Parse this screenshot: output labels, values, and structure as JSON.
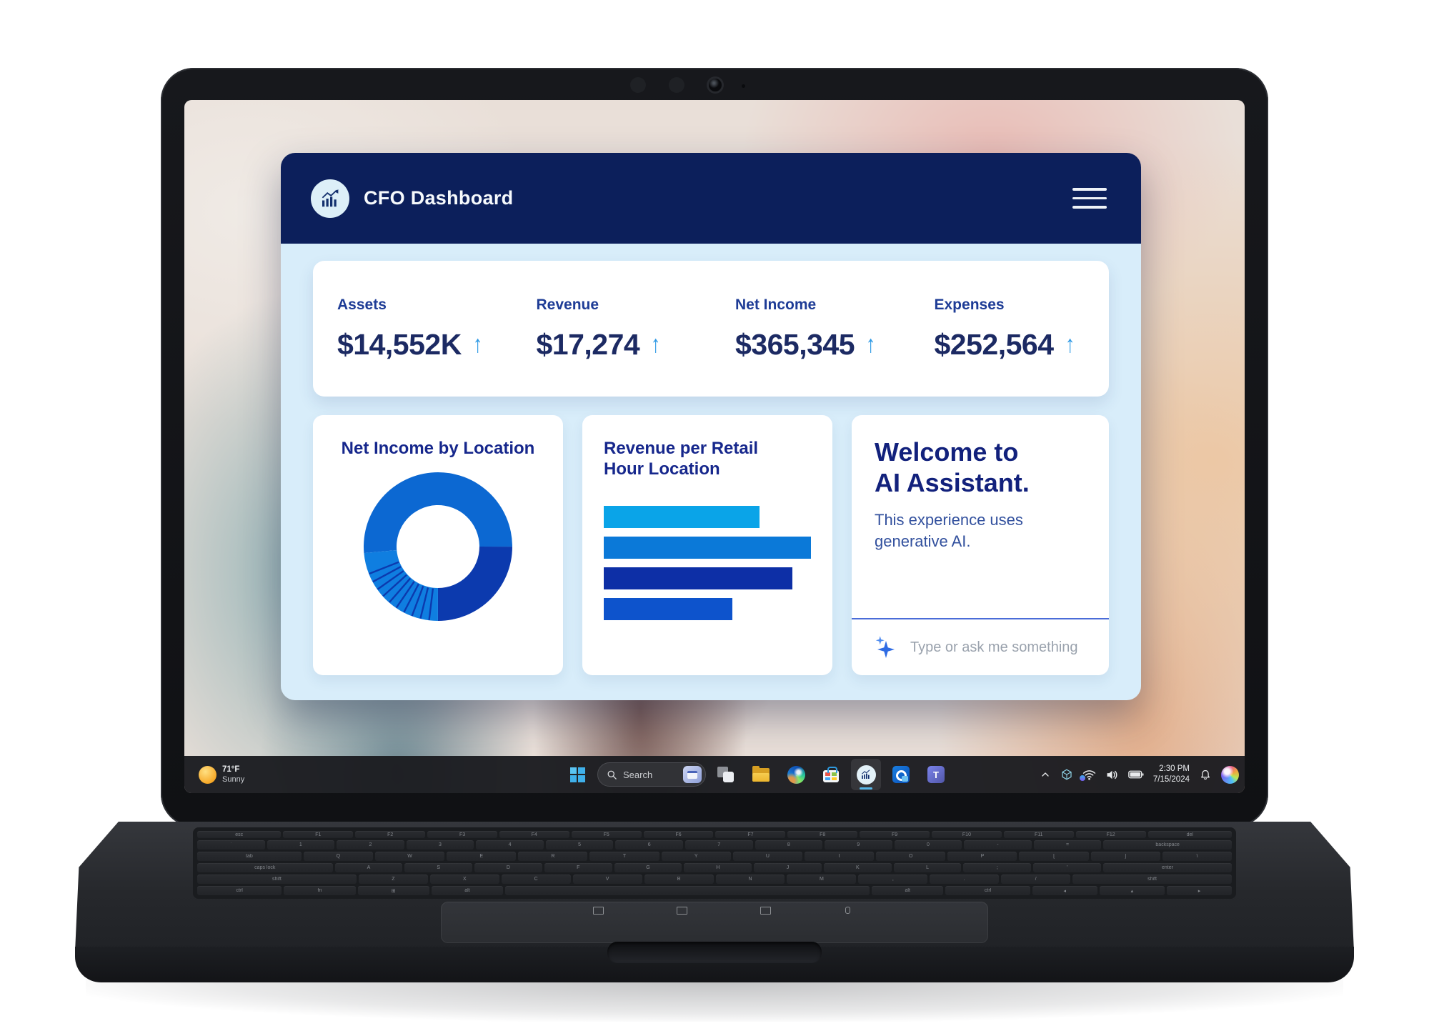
{
  "window": {
    "title": "CFO Dashboard",
    "kpi_trend_glyph": "↑",
    "kpis": [
      {
        "label": "Assets",
        "value": "$14,552K",
        "trend": "up"
      },
      {
        "label": "Revenue",
        "value": "$17,274",
        "trend": "up"
      },
      {
        "label": "Net Income",
        "value": "$365,345",
        "trend": "up"
      },
      {
        "label": "Expenses",
        "value": "$252,564",
        "trend": "up"
      }
    ],
    "ai_panel": {
      "heading_line1": "Welcome to",
      "heading_line2": "AI Assistant.",
      "body": "This experience uses generative AI.",
      "input_placeholder": "Type or ask me something",
      "icon": "sparkle-icon"
    }
  },
  "chart_data": [
    {
      "type": "pie",
      "variant": "donut",
      "title": "Net Income by Location",
      "start_angle_deg": 265,
      "inner_radius_ratio": 0.56,
      "legend": false,
      "separator_color": "#0c3aae",
      "segments": [
        {
          "value": 51.4,
          "color": "#0c68d2"
        },
        {
          "value": 25.0,
          "color": "#0c3aae"
        },
        {
          "value": 1.9,
          "color": "#0f7ee0",
          "sep": true
        },
        {
          "value": 1.9,
          "color": "#0f7ee0",
          "sep": true
        },
        {
          "value": 1.9,
          "color": "#0f7ee0",
          "sep": true
        },
        {
          "value": 1.9,
          "color": "#0f7ee0",
          "sep": true
        },
        {
          "value": 1.9,
          "color": "#0f7ee0",
          "sep": true
        },
        {
          "value": 1.9,
          "color": "#0f7ee0",
          "sep": true
        },
        {
          "value": 1.9,
          "color": "#0f7ee0",
          "sep": true
        },
        {
          "value": 1.9,
          "color": "#0f7ee0",
          "sep": true
        },
        {
          "value": 1.9,
          "color": "#0f7ee0",
          "sep": true
        },
        {
          "value": 1.9,
          "color": "#0f7ee0",
          "sep": true
        },
        {
          "value": 4.6,
          "color": "#0f7ee0",
          "sep": true
        }
      ]
    },
    {
      "type": "bar",
      "title": "Revenue per Retail Hour Location",
      "orientation": "horizontal",
      "value_axis_max": 100,
      "values": [
        75,
        100,
        91,
        62
      ],
      "colors": [
        "#0aa4e8",
        "#0b79d8",
        "#0d2fa6",
        "#0d53cc"
      ],
      "axis_labels": false,
      "grid": false
    }
  ],
  "taskbar": {
    "weather": {
      "temp": "71°F",
      "condition": "Sunny"
    },
    "search_placeholder": "Search",
    "pinned_apps": [
      "task-view",
      "file-explorer",
      "edge",
      "microsoft-store",
      "cfo-dashboard",
      "outlook",
      "teams"
    ],
    "active_app": "cfo-dashboard",
    "tray": {
      "time": "2:30 PM",
      "date": "7/15/2024",
      "icons": [
        "chevron-up",
        "device-cube",
        "wifi",
        "volume",
        "battery",
        "bell",
        "copilot"
      ]
    }
  },
  "laptop": {
    "keyboard_rows": [
      [
        "esc",
        "F1",
        "F2",
        "F3",
        "F4",
        "F5",
        "F6",
        "F7",
        "F8",
        "F9",
        "F10",
        "F11",
        "F12",
        "del"
      ],
      [
        "`",
        "1",
        "2",
        "3",
        "4",
        "5",
        "6",
        "7",
        "8",
        "9",
        "0",
        "-",
        "=",
        "backspace"
      ],
      [
        "tab",
        "Q",
        "W",
        "E",
        "R",
        "T",
        "Y",
        "U",
        "I",
        "O",
        "P",
        "[",
        "]",
        "\\"
      ],
      [
        "caps lock",
        "A",
        "S",
        "D",
        "F",
        "G",
        "H",
        "J",
        "K",
        "L",
        ";",
        "'",
        "enter"
      ],
      [
        "shift",
        "Z",
        "X",
        "C",
        "V",
        "B",
        "N",
        "M",
        ",",
        ".",
        "/",
        "shift"
      ],
      [
        "ctrl",
        "fn",
        "⊞",
        "alt",
        " ",
        "alt",
        "ctrl",
        "◂",
        "▴",
        "▸"
      ]
    ]
  },
  "colors": {
    "header_navy": "#0c1f5b",
    "content_bg": "#d8edfa",
    "kpi_label": "#1e3c96",
    "kpi_value": "#1c2a63",
    "trend_arrow": "#2f9ae5",
    "panel_title": "#16278c",
    "ai_heading": "#12217c",
    "ai_body": "#33519e",
    "divider": "#4a6cd8",
    "taskbar_bg": "#1c1d21",
    "active_indicator": "#57b7ea"
  }
}
